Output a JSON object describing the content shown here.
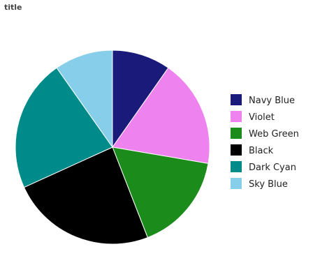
{
  "chart_data": {
    "type": "pie",
    "title": "title",
    "categories": [
      "Navy Blue",
      "Violet",
      "Web Green",
      "Black",
      "Dark Cyan",
      "Sky Blue"
    ],
    "values": [
      9.5,
      17.5,
      16,
      23.5,
      21.5,
      9.5
    ],
    "colors": [
      "#1a1a7a",
      "#ee82ee",
      "#1b8c1b",
      "#000000",
      "#008b8b",
      "#87ceeb"
    ],
    "legend_position": "right",
    "legend": {
      "entries": [
        "Navy Blue",
        "Violet",
        "Web Green",
        "Black",
        "Dark Cyan",
        "Sky Blue"
      ]
    }
  }
}
